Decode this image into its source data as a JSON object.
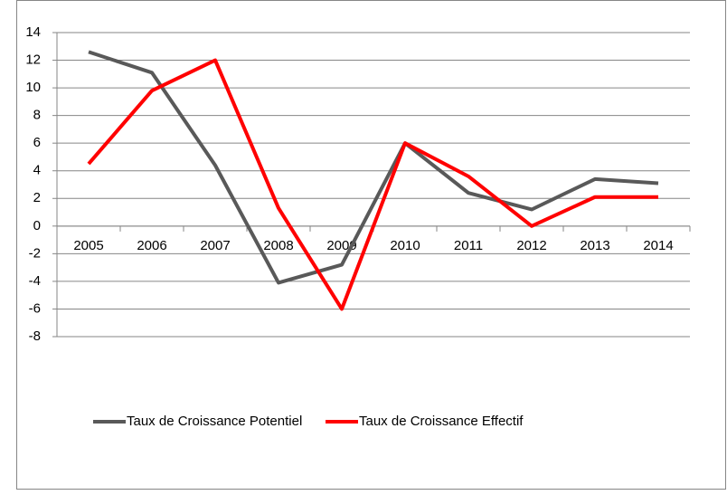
{
  "chart_data": {
    "type": "line",
    "categories": [
      "2005",
      "2006",
      "2007",
      "2008",
      "2009",
      "2010",
      "2011",
      "2012",
      "2013",
      "2014"
    ],
    "series": [
      {
        "name": "Taux de Croissance Potentiel",
        "color": "#595959",
        "values": [
          12.6,
          11.1,
          4.4,
          -4.1,
          -2.8,
          6.0,
          2.4,
          1.2,
          3.4,
          3.1
        ]
      },
      {
        "name": "Taux de Croissance Effectif",
        "color": "#ff0000",
        "values": [
          4.5,
          9.8,
          12.0,
          1.3,
          -6.0,
          6.0,
          3.6,
          0.0,
          2.1,
          2.1
        ]
      }
    ],
    "ylim": [
      -8,
      14
    ],
    "yticks": [
      -8,
      -6,
      -4,
      -2,
      0,
      2,
      4,
      6,
      8,
      10,
      12,
      14
    ],
    "grid": true,
    "legend": "bottom"
  }
}
